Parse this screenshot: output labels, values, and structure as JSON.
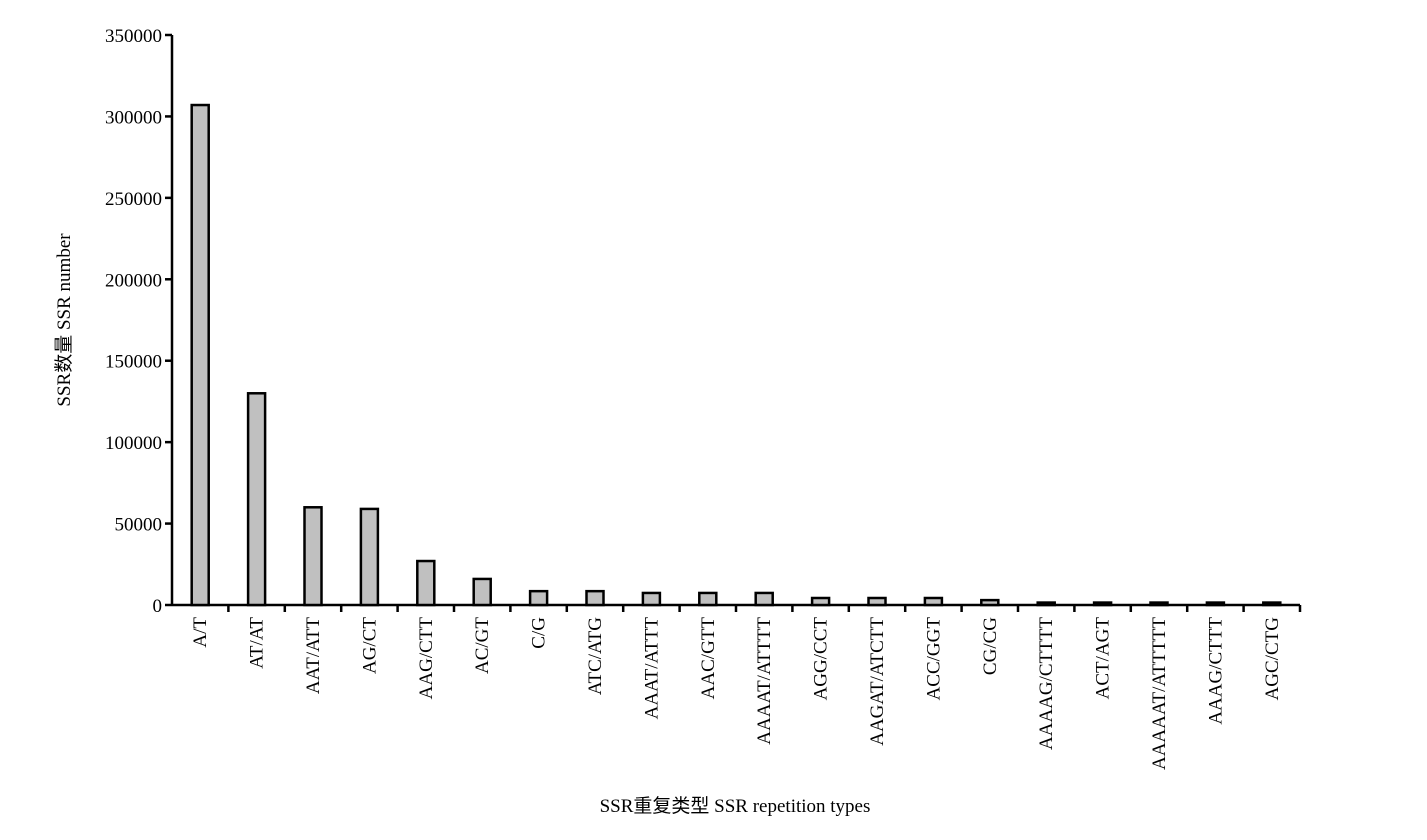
{
  "chart_data": {
    "type": "bar",
    "x_label": "SSR重复类型 SSR repetition types",
    "y_label": "SSR数量 SSR number",
    "categories": [
      "A/T",
      "AT/AT",
      "AAT/ATT",
      "AG/CT",
      "AAG/CTT",
      "AC/GT",
      "C/G",
      "ATC/ATG",
      "AAAT/ATTT",
      "AAC/GTT",
      "AAAAT/ATTTT",
      "AGG/CCT",
      "AAGAT/ATCTT",
      "ACC/GGT",
      "CG/CG",
      "AAAAG/CTTTT",
      "ACT/AGT",
      "AAAAAT/ATTTTT",
      "AAAG/CTTT",
      "AGC/CTG"
    ],
    "values": [
      307000,
      130000,
      60000,
      59000,
      27000,
      16000,
      8500,
      8500,
      7400,
      7400,
      7400,
      4300,
      4300,
      4300,
      3000,
      1500,
      1500,
      1500,
      1500,
      1500
    ],
    "color": "#c0c0c0",
    "ylim": [
      0,
      350000
    ],
    "yticks": [
      0,
      50000,
      100000,
      150000,
      200000,
      250000,
      300000,
      350000
    ]
  }
}
